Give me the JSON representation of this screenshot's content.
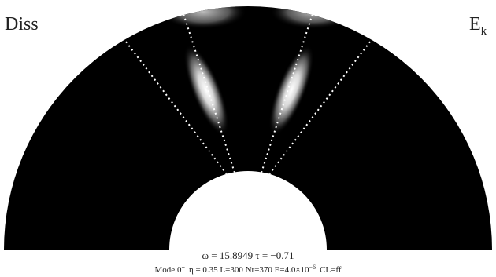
{
  "labels": {
    "left": "Diss",
    "right_base": "E",
    "right_sub": "k"
  },
  "params": "ω = 15.8949  τ = −0.71",
  "caption": {
    "mode": "Mode 0",
    "mode_sup": "+",
    "middle": "η = 0.35  L=300  Nr=370  E=4.0×10",
    "exp": "−6",
    "end": "CL=ff"
  }
}
